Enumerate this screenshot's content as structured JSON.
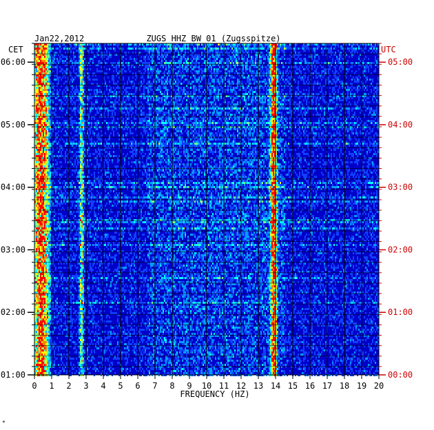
{
  "chart_data": {
    "type": "heatmap",
    "date": "Jan22,2012",
    "title": "ZUGS HHZ BW 01 (Zugsspitze)",
    "left_zone": "CET",
    "right_zone": "UTC",
    "xlabel": "FREQUENCY (HZ)",
    "xlim": [
      0,
      20
    ],
    "x_ticks": [
      "0",
      "1",
      "2",
      "3",
      "4",
      "5",
      "6",
      "7",
      "8",
      "9",
      "10",
      "11",
      "12",
      "13",
      "14",
      "15",
      "16",
      "17",
      "18",
      "19",
      "20"
    ],
    "left_ticks": [
      {
        "hour": 6,
        "label": "06:00"
      },
      {
        "hour": 5,
        "label": "05:00"
      },
      {
        "hour": 4,
        "label": "04:00"
      },
      {
        "hour": 3,
        "label": "03:00"
      },
      {
        "hour": 2,
        "label": "02:00"
      },
      {
        "hour": 1,
        "label": "01:00"
      }
    ],
    "right_ticks": [
      {
        "hour": 5,
        "label": "05:00"
      },
      {
        "hour": 4,
        "label": "04:00"
      },
      {
        "hour": 3,
        "label": "03:00"
      },
      {
        "hour": 2,
        "label": "02:00"
      },
      {
        "hour": 1,
        "label": "01:00"
      },
      {
        "hour": 0,
        "label": "00:00"
      }
    ],
    "colors": {
      "background": "#0000c8",
      "grid": "#000000",
      "left_text": "#000000",
      "right_text": "#cc0000",
      "palette": [
        "#0000a0",
        "#0000d8",
        "#1040ff",
        "#00a0ff",
        "#00ffff",
        "#80ff80",
        "#ffff00",
        "#ff8000",
        "#ff0000"
      ]
    },
    "bands": [
      {
        "name": "low-frequency noise",
        "freq": 0.35,
        "width": 0.45,
        "intensity": 0.95
      },
      {
        "name": "persistent line",
        "freq": 13.85,
        "width": 0.18,
        "intensity": 0.9
      },
      {
        "name": "secondary line",
        "freq": 2.7,
        "width": 0.12,
        "intensity": 0.55
      }
    ]
  }
}
